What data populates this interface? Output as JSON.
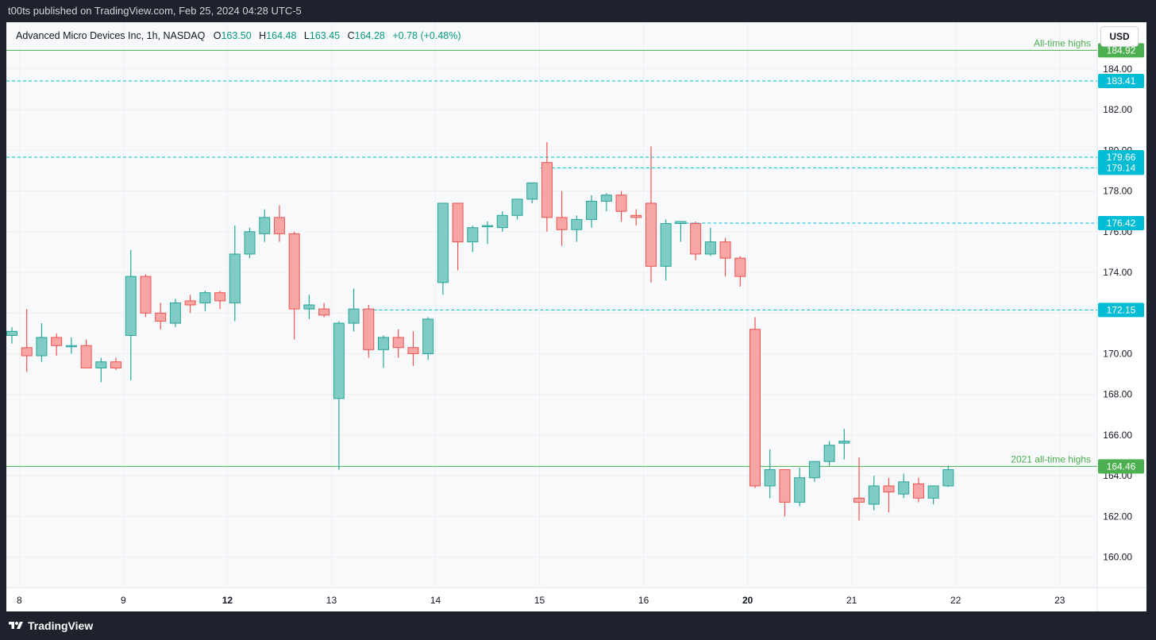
{
  "header": {
    "published_text": "t00ts published on TradingView.com, Feb 25, 2024 04:28 UTC-5"
  },
  "footer": {
    "brand": "TradingView",
    "logo_icon": "tradingview-logo-icon"
  },
  "legend": {
    "symbol": "Advanced Micro Devices Inc, 1h, NASDAQ",
    "open_label": "O",
    "open": "163.50",
    "high_label": "H",
    "high": "164.48",
    "low_label": "L",
    "low": "163.45",
    "close_label": "C",
    "close": "164.28",
    "change": "+0.78 (+0.48%)"
  },
  "currency_button": "USD",
  "colors": {
    "up": "#26a69a",
    "up_fill": "#80cbc4",
    "down": "#ef5350",
    "down_fill": "#f7a6a5",
    "green_line": "#4caf50",
    "cyan_line": "#00bcd4"
  },
  "chart_data": {
    "type": "candlestick",
    "ylim": [
      158.5,
      186.3
    ],
    "y_ticks": [
      "184.00",
      "182.00",
      "180.00",
      "178.00",
      "176.00",
      "174.00",
      "172.00",
      "170.00",
      "168.00",
      "166.00",
      "164.00",
      "162.00",
      "160.00"
    ],
    "x_ticks": [
      {
        "label": "8",
        "i": 0.5,
        "bold": false
      },
      {
        "label": "9",
        "i": 7.5,
        "bold": false
      },
      {
        "label": "12",
        "i": 14.5,
        "bold": true
      },
      {
        "label": "13",
        "i": 21.5,
        "bold": false
      },
      {
        "label": "14",
        "i": 28.5,
        "bold": false
      },
      {
        "label": "15",
        "i": 35.5,
        "bold": false
      },
      {
        "label": "16",
        "i": 42.5,
        "bold": false
      },
      {
        "label": "20",
        "i": 49.5,
        "bold": true
      },
      {
        "label": "21",
        "i": 56.5,
        "bold": false
      },
      {
        "label": "22",
        "i": 63.5,
        "bold": false
      },
      {
        "label": "23",
        "i": 70.5,
        "bold": false
      }
    ],
    "candles": [
      {
        "o": 170.9,
        "h": 171.3,
        "l": 170.5,
        "c": 171.1
      },
      {
        "o": 170.3,
        "h": 172.2,
        "l": 169.1,
        "c": 169.9
      },
      {
        "o": 169.9,
        "h": 171.5,
        "l": 169.6,
        "c": 170.8
      },
      {
        "o": 170.8,
        "h": 171.0,
        "l": 169.9,
        "c": 170.4
      },
      {
        "o": 170.4,
        "h": 170.8,
        "l": 170.0,
        "c": 170.4
      },
      {
        "o": 170.4,
        "h": 170.7,
        "l": 169.3,
        "c": 169.3
      },
      {
        "o": 169.3,
        "h": 169.8,
        "l": 168.6,
        "c": 169.6
      },
      {
        "o": 169.6,
        "h": 169.8,
        "l": 169.2,
        "c": 169.3
      },
      {
        "o": 170.9,
        "h": 175.1,
        "l": 168.7,
        "c": 173.8
      },
      {
        "o": 173.8,
        "h": 173.9,
        "l": 171.8,
        "c": 172.0
      },
      {
        "o": 172.0,
        "h": 172.5,
        "l": 171.2,
        "c": 171.6
      },
      {
        "o": 171.5,
        "h": 172.7,
        "l": 171.3,
        "c": 172.5
      },
      {
        "o": 172.6,
        "h": 172.9,
        "l": 172.0,
        "c": 172.4
      },
      {
        "o": 172.5,
        "h": 173.1,
        "l": 172.1,
        "c": 173.0
      },
      {
        "o": 173.0,
        "h": 173.1,
        "l": 172.2,
        "c": 172.6
      },
      {
        "o": 172.5,
        "h": 176.3,
        "l": 171.6,
        "c": 174.9
      },
      {
        "o": 174.9,
        "h": 176.2,
        "l": 174.7,
        "c": 176.0
      },
      {
        "o": 175.9,
        "h": 177.1,
        "l": 175.5,
        "c": 176.7
      },
      {
        "o": 176.7,
        "h": 177.3,
        "l": 175.5,
        "c": 175.9
      },
      {
        "o": 175.9,
        "h": 176.0,
        "l": 170.7,
        "c": 172.2
      },
      {
        "o": 172.2,
        "h": 172.9,
        "l": 171.7,
        "c": 172.4
      },
      {
        "o": 172.2,
        "h": 172.5,
        "l": 171.8,
        "c": 171.9
      },
      {
        "o": 167.8,
        "h": 171.6,
        "l": 164.3,
        "c": 171.5
      },
      {
        "o": 171.5,
        "h": 173.2,
        "l": 171.1,
        "c": 172.2
      },
      {
        "o": 172.2,
        "h": 172.4,
        "l": 169.8,
        "c": 170.2
      },
      {
        "o": 170.2,
        "h": 170.9,
        "l": 169.3,
        "c": 170.8
      },
      {
        "o": 170.8,
        "h": 171.2,
        "l": 169.8,
        "c": 170.3
      },
      {
        "o": 170.3,
        "h": 171.1,
        "l": 169.4,
        "c": 170.0
      },
      {
        "o": 170.0,
        "h": 171.8,
        "l": 169.7,
        "c": 171.7
      },
      {
        "o": 173.5,
        "h": 177.4,
        "l": 172.9,
        "c": 177.4
      },
      {
        "o": 177.4,
        "h": 177.4,
        "l": 174.1,
        "c": 175.5
      },
      {
        "o": 175.5,
        "h": 176.3,
        "l": 175.0,
        "c": 176.2
      },
      {
        "o": 176.3,
        "h": 176.5,
        "l": 175.4,
        "c": 176.3
      },
      {
        "o": 176.2,
        "h": 177.0,
        "l": 176.0,
        "c": 176.8
      },
      {
        "o": 176.8,
        "h": 177.5,
        "l": 176.6,
        "c": 177.6
      },
      {
        "o": 177.6,
        "h": 178.2,
        "l": 177.4,
        "c": 178.4
      },
      {
        "o": 179.4,
        "h": 180.4,
        "l": 176.0,
        "c": 176.7
      },
      {
        "o": 176.7,
        "h": 178.0,
        "l": 175.3,
        "c": 176.1
      },
      {
        "o": 176.1,
        "h": 176.8,
        "l": 175.5,
        "c": 176.6
      },
      {
        "o": 176.6,
        "h": 177.8,
        "l": 176.2,
        "c": 177.5
      },
      {
        "o": 177.5,
        "h": 177.9,
        "l": 177.0,
        "c": 177.8
      },
      {
        "o": 177.8,
        "h": 178.0,
        "l": 176.5,
        "c": 177.0
      },
      {
        "o": 176.8,
        "h": 177.1,
        "l": 176.3,
        "c": 176.7
      },
      {
        "o": 177.4,
        "h": 180.2,
        "l": 173.5,
        "c": 174.3
      },
      {
        "o": 174.3,
        "h": 176.6,
        "l": 173.6,
        "c": 176.4
      },
      {
        "o": 176.4,
        "h": 176.5,
        "l": 175.5,
        "c": 176.5
      },
      {
        "o": 176.4,
        "h": 176.5,
        "l": 174.6,
        "c": 174.9
      },
      {
        "o": 174.9,
        "h": 176.2,
        "l": 174.8,
        "c": 175.5
      },
      {
        "o": 175.5,
        "h": 175.7,
        "l": 173.8,
        "c": 174.7
      },
      {
        "o": 174.7,
        "h": 174.8,
        "l": 173.3,
        "c": 173.8
      },
      {
        "o": 171.2,
        "h": 171.8,
        "l": 163.4,
        "c": 163.5
      },
      {
        "o": 163.5,
        "h": 165.3,
        "l": 162.9,
        "c": 164.3
      },
      {
        "o": 164.3,
        "h": 164.3,
        "l": 162.0,
        "c": 162.7
      },
      {
        "o": 162.7,
        "h": 164.4,
        "l": 162.5,
        "c": 163.9
      },
      {
        "o": 163.9,
        "h": 164.7,
        "l": 163.7,
        "c": 164.7
      },
      {
        "o": 164.7,
        "h": 165.7,
        "l": 164.5,
        "c": 165.5
      },
      {
        "o": 165.6,
        "h": 166.3,
        "l": 164.8,
        "c": 165.7
      },
      {
        "o": 162.9,
        "h": 164.9,
        "l": 161.8,
        "c": 162.7
      },
      {
        "o": 162.6,
        "h": 164.0,
        "l": 162.3,
        "c": 163.5
      },
      {
        "o": 163.5,
        "h": 163.9,
        "l": 162.2,
        "c": 163.2
      },
      {
        "o": 163.1,
        "h": 164.1,
        "l": 162.9,
        "c": 163.7
      },
      {
        "o": 163.6,
        "h": 163.9,
        "l": 162.7,
        "c": 162.9
      },
      {
        "o": 162.9,
        "h": 163.5,
        "l": 162.6,
        "c": 163.5
      },
      {
        "o": 163.5,
        "h": 164.5,
        "l": 163.45,
        "c": 164.3
      }
    ],
    "horizontal_lines": [
      {
        "price": 184.92,
        "label": "184.92",
        "style": "solid",
        "color": "#4caf50",
        "caption": "All-time highs",
        "start_i": -1
      },
      {
        "price": 183.41,
        "label": "183.41",
        "style": "dashed",
        "color": "#00bcd4",
        "caption": "",
        "start_i": -1
      },
      {
        "price": 179.66,
        "label": "179.66",
        "style": "dashed",
        "color": "#00bcd4",
        "caption": "",
        "start_i": -1
      },
      {
        "price": 179.14,
        "label": "179.14",
        "style": "dashed",
        "color": "#00bcd4",
        "caption": "",
        "start_i": 36
      },
      {
        "price": 176.42,
        "label": "176.42",
        "style": "dashed",
        "color": "#00bcd4",
        "caption": "",
        "start_i": 45
      },
      {
        "price": 172.15,
        "label": "172.15",
        "style": "dashed",
        "color": "#00bcd4",
        "caption": "",
        "start_i": 24
      },
      {
        "price": 164.46,
        "label": "164.46",
        "style": "solid",
        "color": "#4caf50",
        "caption": "2021 all-time highs",
        "start_i": -1
      }
    ]
  }
}
